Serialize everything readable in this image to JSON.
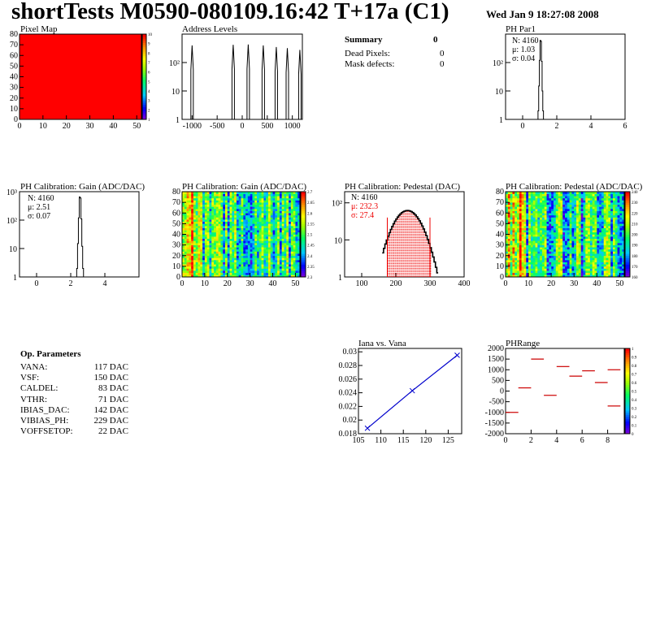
{
  "header": {
    "title": "shortTests M0590-080109.16:42 T+17a (C1)",
    "date": "Wed Jan  9 18:27:08 2008"
  },
  "panels": {
    "pixel_map": "Pixel Map",
    "address_levels": "Address Levels",
    "ph_par1": "PH Par1",
    "gain1d": "PH Calibration: Gain (ADC/DAC)",
    "gain2d": "PH Calibration: Gain (ADC/DAC)",
    "pedestal1d": "PH Calibration: Pedestal (DAC)",
    "pedestal2d": "PH Calibration: Pedestal (ADC/DAC)",
    "iana": "Iana vs. Vana",
    "phrange": "PHRange"
  },
  "summary": {
    "title": "Summary",
    "total": "0",
    "rows": [
      {
        "label": "Dead Pixels:",
        "value": "0"
      },
      {
        "label": "Mask defects:",
        "value": "0"
      }
    ]
  },
  "stats": {
    "ph_par1": [
      "N: 4160",
      "μ: 1.03",
      "σ: 0.04"
    ],
    "gain": [
      "N: 4160",
      "μ: 2.51",
      "σ: 0.07"
    ],
    "pedestal": [
      "N: 4160",
      "μ: 232.3",
      "σ: 27.4"
    ]
  },
  "op_parameters": {
    "title": "Op. Parameters",
    "rows": [
      {
        "name": "VANA:",
        "value": "117 DAC"
      },
      {
        "name": "VSF:",
        "value": "150 DAC"
      },
      {
        "name": "CALDEL:",
        "value": "83 DAC"
      },
      {
        "name": "VTHR:",
        "value": "71 DAC"
      },
      {
        "name": "IBIAS_DAC:",
        "value": "142 DAC"
      },
      {
        "name": "VIBIAS_PH:",
        "value": "229 DAC"
      },
      {
        "name": "VOFFSETOP:",
        "value": "22 DAC"
      }
    ]
  },
  "colors": {
    "fill_red": "#ff0000",
    "fit_blue": "#0000cc",
    "stat_red": "#ee0000"
  },
  "chart_data": [
    {
      "name": "Pixel Map",
      "type": "heatmap",
      "x_range": [
        0,
        52
      ],
      "y_range": [
        0,
        80
      ],
      "x_ticks": [
        "0",
        "10",
        "20",
        "30",
        "40",
        "50"
      ],
      "y_ticks": [
        "0",
        "10",
        "20",
        "30",
        "40",
        "50",
        "60",
        "70",
        "80"
      ],
      "z_ticks": [
        "1",
        "2",
        "3",
        "4",
        "5",
        "6",
        "7",
        "8",
        "9",
        "10"
      ],
      "uniform_value": 10
    },
    {
      "name": "Address Levels",
      "type": "bar",
      "y_scale": "log",
      "x_range": [
        -1200,
        1200
      ],
      "x_ticks": [
        "-1000",
        "-500",
        "0",
        "500",
        "1000"
      ],
      "y_ticks": [
        "1",
        "10",
        "10²"
      ],
      "peaks": [
        {
          "x": -1000,
          "y": 400
        },
        {
          "x": -180,
          "y": 420
        },
        {
          "x": 120,
          "y": 430
        },
        {
          "x": 420,
          "y": 400
        },
        {
          "x": 680,
          "y": 350
        },
        {
          "x": 900,
          "y": 320
        },
        {
          "x": 1150,
          "y": 280
        }
      ]
    },
    {
      "name": "PH Par1",
      "type": "bar",
      "y_scale": "log",
      "x_range": [
        -1,
        6
      ],
      "x_ticks": [
        "0",
        "2",
        "4",
        "6"
      ],
      "y_ticks": [
        "1",
        "10",
        "10²"
      ],
      "bins_x": [
        0.9,
        0.94,
        0.98,
        1.02,
        1.06,
        1.1,
        1.14,
        1.18
      ],
      "bins_y": [
        2,
        15,
        120,
        600,
        560,
        110,
        10,
        2
      ]
    },
    {
      "name": "PH Calibration: Gain (ADC/DAC)",
      "type": "bar",
      "y_scale": "log",
      "x_range": [
        -1,
        6
      ],
      "x_ticks": [
        "0",
        "2",
        "4"
      ],
      "y_ticks": [
        "1",
        "10",
        "10²",
        "10³"
      ],
      "bins_x": [
        2.35,
        2.4,
        2.45,
        2.5,
        2.55,
        2.6,
        2.65,
        2.7
      ],
      "bins_y": [
        2,
        15,
        120,
        650,
        600,
        110,
        12,
        2
      ]
    },
    {
      "name": "PH Calibration: Gain (ADC/DAC) map",
      "type": "heatmap",
      "x_range": [
        0,
        52
      ],
      "y_range": [
        0,
        80
      ],
      "x_ticks": [
        "0",
        "10",
        "20",
        "30",
        "40",
        "50"
      ],
      "y_ticks": [
        "0",
        "10",
        "20",
        "30",
        "40",
        "50",
        "60",
        "70",
        "80"
      ],
      "z_ticks": [
        "2.3",
        "2.35",
        "2.4",
        "2.45",
        "2.5",
        "2.55",
        "2.6",
        "2.65",
        "2.7"
      ]
    },
    {
      "name": "PH Calibration: Pedestal (DAC)",
      "type": "bar",
      "y_scale": "log",
      "x_range": [
        50,
        400
      ],
      "x_ticks": [
        "100",
        "200",
        "300",
        "400"
      ],
      "y_ticks": [
        "1",
        "10",
        "10²"
      ],
      "fit_range": [
        175,
        300
      ],
      "mean": 232.3,
      "sigma": 27.4
    },
    {
      "name": "PH Calibration: Pedestal (ADC/DAC) map",
      "type": "heatmap",
      "x_range": [
        0,
        52
      ],
      "y_range": [
        0,
        80
      ],
      "x_ticks": [
        "0",
        "10",
        "20",
        "30",
        "40",
        "50"
      ],
      "y_ticks": [
        "0",
        "10",
        "20",
        "30",
        "40",
        "50",
        "60",
        "70",
        "80"
      ],
      "z_ticks": [
        "160",
        "170",
        "180",
        "190",
        "200",
        "210",
        "220",
        "230",
        "240"
      ]
    },
    {
      "name": "Iana vs. Vana",
      "type": "line",
      "x_range": [
        105,
        128
      ],
      "y_range": [
        0.018,
        0.0305
      ],
      "x_ticks": [
        "105",
        "110",
        "115",
        "120",
        "125"
      ],
      "y_ticks": [
        "0.018",
        "0.02",
        "0.022",
        "0.024",
        "0.026",
        "0.028",
        "0.03"
      ],
      "x": [
        107,
        117,
        127
      ],
      "y": [
        0.0188,
        0.0243,
        0.0295
      ]
    },
    {
      "name": "PHRange",
      "type": "heatmap",
      "x_range": [
        0,
        9.3
      ],
      "y_range": [
        -2000,
        2000
      ],
      "x_ticks": [
        "0",
        "2",
        "4",
        "6",
        "8"
      ],
      "y_ticks": [
        "-2000",
        "-1500",
        "-1000",
        "-500",
        "0",
        "500",
        "1000",
        "1500",
        "2000"
      ],
      "z_ticks": [
        "0",
        "0.1",
        "0.2",
        "0.3",
        "0.4",
        "0.5",
        "0.6",
        "0.7",
        "0.8",
        "0.9",
        "1"
      ],
      "segments": [
        {
          "x": 0,
          "y": -1000
        },
        {
          "x": 1,
          "y": 150
        },
        {
          "x": 2,
          "y": 1500
        },
        {
          "x": 3,
          "y": -200
        },
        {
          "x": 4,
          "y": 1150
        },
        {
          "x": 5,
          "y": 700
        },
        {
          "x": 6,
          "y": 950
        },
        {
          "x": 7,
          "y": 400
        },
        {
          "x": 8,
          "y": 1000
        },
        {
          "x": 8,
          "y": -700
        }
      ]
    }
  ]
}
